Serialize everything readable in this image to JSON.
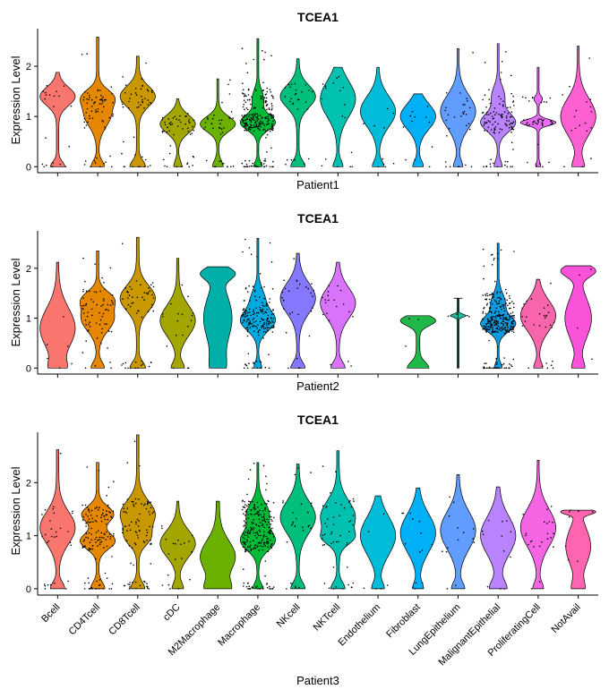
{
  "chart_data": [
    {
      "type": "violin",
      "title": "TCEA1",
      "xlabel": "Patient1",
      "ylabel": "Expression Level",
      "ylim": [
        -0.12,
        2.75
      ],
      "yticks": [
        0,
        1,
        2
      ],
      "violins": [
        {
          "category": "Bcell",
          "color": "#F8766D",
          "max": 1.88,
          "modes": [
            [
              0,
              0.2,
              0.1
            ],
            [
              1.4,
              0.55,
              0.18
            ]
          ],
          "points": 22
        },
        {
          "category": "CD4Tcell",
          "color": "#E58700",
          "max": 2.58,
          "modes": [
            [
              0,
              0.2,
              0.12
            ],
            [
              1.05,
              0.45,
              0.25
            ],
            [
              1.4,
              0.4,
              0.15
            ]
          ],
          "points": 70
        },
        {
          "category": "CD8Tcell",
          "color": "#C99800",
          "max": 2.2,
          "modes": [
            [
              0,
              0.2,
              0.12
            ],
            [
              1.4,
              0.5,
              0.2
            ]
          ],
          "points": 50
        },
        {
          "category": "cDC",
          "color": "#A3A500",
          "max": 1.35,
          "modes": [
            [
              0,
              0.2,
              0.12
            ],
            [
              0.85,
              1.0,
              0.18
            ]
          ],
          "points": 55
        },
        {
          "category": "M2Macrophage",
          "color": "#6BB100",
          "max": 1.75,
          "modes": [
            [
              0,
              0.2,
              0.12
            ],
            [
              0.85,
              0.75,
              0.15
            ]
          ],
          "points": 38
        },
        {
          "category": "Macrophage",
          "color": "#00BA38",
          "max": 2.55,
          "modes": [
            [
              0,
              0.2,
              0.1
            ],
            [
              0.88,
              1.0,
              0.15
            ],
            [
              1.35,
              0.3,
              0.18
            ]
          ],
          "points": 250
        },
        {
          "category": "NKcell",
          "color": "#00BF7D",
          "max": 2.15,
          "modes": [
            [
              0,
              0.2,
              0.12
            ],
            [
              1.4,
              0.55,
              0.22
            ]
          ],
          "points": 28
        },
        {
          "category": "NKTcell",
          "color": "#00C0AF",
          "max": 1.98,
          "modes": [
            [
              0,
              0.2,
              0.12
            ],
            [
              1.35,
              0.8,
              0.35
            ]
          ],
          "points": 18
        },
        {
          "category": "Endothelium",
          "color": "#00BCD8",
          "max": 1.98,
          "modes": [
            [
              0,
              0.2,
              0.12
            ],
            [
              1.1,
              0.7,
              0.3
            ]
          ],
          "points": 10
        },
        {
          "category": "Fibroblast",
          "color": "#00B0F6",
          "max": 1.45,
          "modes": [
            [
              0,
              0.2,
              0.12
            ],
            [
              1.0,
              0.75,
              0.25
            ]
          ],
          "points": 12
        },
        {
          "category": "LungEpithelium",
          "color": "#619CFF",
          "max": 2.35,
          "modes": [
            [
              0,
              0.2,
              0.12
            ],
            [
              1.1,
              0.85,
              0.32
            ]
          ],
          "points": 30
        },
        {
          "category": "MalignantEpithelial",
          "color": "#B983FF",
          "max": 2.45,
          "modes": [
            [
              0,
              0.2,
              0.12
            ],
            [
              0.88,
              1.0,
              0.18
            ],
            [
              1.4,
              0.35,
              0.2
            ]
          ],
          "points": 110
        },
        {
          "category": "ProliferatingCell",
          "color": "#E76BF3",
          "max": 1.98,
          "modes": [
            [
              0.02,
              0.1,
              0.06
            ],
            [
              0.88,
              0.95,
              0.06
            ],
            [
              1.35,
              0.2,
              0.06
            ]
          ],
          "points": 45
        },
        {
          "category": "NotAvail",
          "color": "#FD61D1",
          "max": 2.4,
          "modes": [
            [
              0,
              0.25,
              0.15
            ],
            [
              1.0,
              0.8,
              0.35
            ]
          ],
          "points": 18
        }
      ]
    },
    {
      "type": "violin",
      "title": "TCEA1",
      "xlabel": "Patient2",
      "ylabel": "Expression Level",
      "ylim": [
        -0.12,
        2.75
      ],
      "yticks": [
        0,
        1,
        2
      ],
      "violins": [
        {
          "category": "Bcell",
          "color": "#F8766D",
          "max": 2.12,
          "modes": [
            [
              0,
              0.25,
              0.15
            ],
            [
              0.8,
              0.65,
              0.4
            ]
          ],
          "points": 6
        },
        {
          "category": "CD4Tcell",
          "color": "#E58700",
          "max": 2.35,
          "modes": [
            [
              0,
              0.2,
              0.12
            ],
            [
              1.0,
              0.55,
              0.25
            ],
            [
              1.4,
              0.4,
              0.15
            ]
          ],
          "points": 70
        },
        {
          "category": "CD8Tcell",
          "color": "#C99800",
          "max": 2.62,
          "modes": [
            [
              0,
              0.2,
              0.12
            ],
            [
              1.4,
              0.5,
              0.25
            ]
          ],
          "points": 55
        },
        {
          "category": "cDC",
          "color": "#A3A500",
          "max": 2.2,
          "modes": [
            [
              0,
              0.2,
              0.12
            ],
            [
              0.95,
              0.6,
              0.3
            ]
          ],
          "points": 18
        },
        {
          "category": "M2Macrophage",
          "color": "#00B0A8",
          "max": 2.03,
          "modes": [
            [
              0,
              0.4,
              0.25
            ],
            [
              1.0,
              0.9,
              0.5
            ],
            [
              1.9,
              0.95,
              0.12
            ]
          ],
          "points": 0
        },
        {
          "category": "Macrophage",
          "color": "#00A9E0",
          "max": 2.6,
          "modes": [
            [
              0,
              0.2,
              0.12
            ],
            [
              0.95,
              1.0,
              0.2
            ],
            [
              1.4,
              0.35,
              0.2
            ]
          ],
          "points": 180
        },
        {
          "category": "NKcell",
          "color": "#8478FF",
          "max": 2.3,
          "modes": [
            [
              0,
              0.2,
              0.12
            ],
            [
              1.4,
              0.55,
              0.3
            ]
          ],
          "points": 30
        },
        {
          "category": "NKTcell",
          "color": "#D973FC",
          "max": 2.12,
          "modes": [
            [
              0,
              0.2,
              0.12
            ],
            [
              1.3,
              0.55,
              0.3
            ]
          ],
          "points": 20
        },
        {
          "category": "Endothelium",
          "color": "#00BCD8",
          "max": 0,
          "modes": [],
          "points": 0
        },
        {
          "category": "Fibroblast",
          "color": "#21B84A",
          "max": 1.05,
          "modes": [
            [
              0,
              0.2,
              0.12
            ],
            [
              0.95,
              0.35,
              0.1
            ]
          ],
          "points": 3
        },
        {
          "category": "LungEpithelium",
          "color": "#1FB89A",
          "max": 1.4,
          "modes": [
            [
              1.05,
              0.35,
              0.03
            ]
          ],
          "min": 0,
          "points": 4,
          "narrow": true
        },
        {
          "category": "MalignantEpithelial",
          "color": "#0F9BE0",
          "max": 2.5,
          "modes": [
            [
              0,
              0.2,
              0.1
            ],
            [
              0.88,
              1.0,
              0.15
            ],
            [
              1.3,
              0.4,
              0.2
            ]
          ],
          "points": 300
        },
        {
          "category": "ProliferatingCell",
          "color": "#F865AA",
          "max": 1.78,
          "modes": [
            [
              0,
              0.2,
              0.12
            ],
            [
              1.05,
              0.9,
              0.3
            ]
          ],
          "points": 30
        },
        {
          "category": "NotAvail",
          "color": "#FA52D8",
          "max": 2.05,
          "modes": [
            [
              0,
              0.3,
              0.15
            ],
            [
              1.0,
              0.7,
              0.4
            ],
            [
              1.95,
              0.9,
              0.12
            ]
          ],
          "points": 4
        }
      ]
    },
    {
      "type": "violin",
      "title": "TCEA1",
      "xlabel": "Patient3",
      "ylabel": "Expression Level",
      "ylim": [
        -0.12,
        2.95
      ],
      "yticks": [
        0,
        1,
        2
      ],
      "violins": [
        {
          "category": "Bcell",
          "color": "#F8766D",
          "max": 2.62,
          "modes": [
            [
              0,
              0.2,
              0.12
            ],
            [
              1.15,
              0.55,
              0.3
            ]
          ],
          "points": 30
        },
        {
          "category": "CD4Tcell",
          "color": "#E58700",
          "max": 2.38,
          "modes": [
            [
              0,
              0.2,
              0.12
            ],
            [
              0.9,
              0.55,
              0.15
            ],
            [
              1.4,
              0.5,
              0.15
            ]
          ],
          "points": 130
        },
        {
          "category": "CD8Tcell",
          "color": "#C99800",
          "max": 2.9,
          "modes": [
            [
              0,
              0.2,
              0.12
            ],
            [
              1.4,
              0.55,
              0.25
            ],
            [
              0.95,
              0.3,
              0.15
            ]
          ],
          "points": 90
        },
        {
          "category": "cDC",
          "color": "#A3A500",
          "max": 1.65,
          "modes": [
            [
              0,
              0.2,
              0.12
            ],
            [
              0.85,
              0.7,
              0.25
            ]
          ],
          "points": 20
        },
        {
          "category": "M2Macrophage",
          "color": "#6BB100",
          "max": 1.65,
          "modes": [
            [
              0,
              0.25,
              0.15
            ],
            [
              0.6,
              0.4,
              0.3
            ]
          ],
          "points": 0
        },
        {
          "category": "Macrophage",
          "color": "#00BA38",
          "max": 2.38,
          "modes": [
            [
              0,
              0.2,
              0.1
            ],
            [
              0.9,
              0.75,
              0.18
            ],
            [
              1.4,
              0.5,
              0.22
            ]
          ],
          "points": 240
        },
        {
          "category": "NKcell",
          "color": "#00BF7D",
          "max": 2.35,
          "modes": [
            [
              0,
              0.2,
              0.12
            ],
            [
              1.35,
              0.55,
              0.3
            ]
          ],
          "points": 28
        },
        {
          "category": "NKTcell",
          "color": "#00C0AF",
          "max": 2.6,
          "modes": [
            [
              0,
              0.2,
              0.12
            ],
            [
              1.35,
              0.55,
              0.3
            ],
            [
              0.95,
              0.3,
              0.12
            ]
          ],
          "points": 50
        },
        {
          "category": "Endothelium",
          "color": "#00BCD8",
          "max": 1.75,
          "modes": [
            [
              0,
              0.2,
              0.12
            ],
            [
              1.0,
              0.65,
              0.35
            ]
          ],
          "points": 6
        },
        {
          "category": "Fibroblast",
          "color": "#00B0F6",
          "max": 1.9,
          "modes": [
            [
              0,
              0.2,
              0.12
            ],
            [
              1.05,
              0.75,
              0.35
            ]
          ],
          "points": 14
        },
        {
          "category": "LungEpithelium",
          "color": "#619CFF",
          "max": 2.15,
          "modes": [
            [
              0,
              0.2,
              0.12
            ],
            [
              1.1,
              0.6,
              0.35
            ]
          ],
          "points": 14
        },
        {
          "category": "MalignantEpithelial",
          "color": "#B983FF",
          "max": 1.92,
          "modes": [
            [
              0,
              0.25,
              0.15
            ],
            [
              1.0,
              0.55,
              0.35
            ]
          ],
          "points": 12
        },
        {
          "category": "ProliferatingCell",
          "color": "#F564E3",
          "max": 2.42,
          "modes": [
            [
              0,
              0.2,
              0.12
            ],
            [
              1.15,
              0.75,
              0.35
            ]
          ],
          "points": 22
        },
        {
          "category": "NotAvail",
          "color": "#FF64B0",
          "max": 1.48,
          "modes": [
            [
              0,
              0.25,
              0.15
            ],
            [
              0.8,
              0.55,
              0.35
            ],
            [
              1.45,
              0.7,
              0.05
            ]
          ],
          "points": 8
        }
      ]
    }
  ]
}
